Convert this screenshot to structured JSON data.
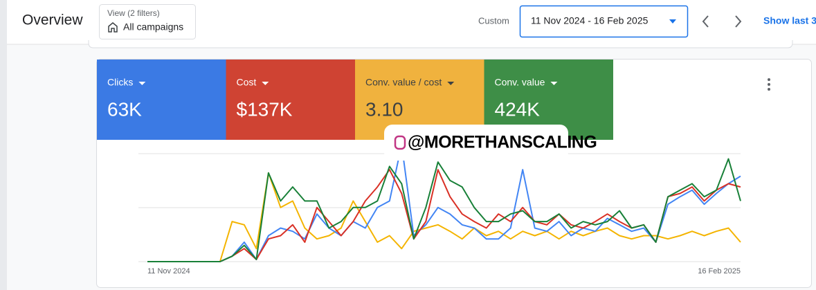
{
  "header": {
    "title": "Overview",
    "filter_caption": "View (2 filters)",
    "filter_value": "All campaigns",
    "range_type": "Custom",
    "date_range": "11 Nov 2024 - 16 Feb 2025",
    "show_last": "Show last 3"
  },
  "watermark": "@MORETHANSCALING",
  "chart": {
    "type": "line",
    "ylim": [
      0,
      110
    ],
    "categories": [
      "11 Nov 2024",
      null,
      null,
      null,
      null,
      null,
      null,
      null,
      null,
      null,
      null,
      null,
      null,
      null,
      null,
      null,
      null,
      null,
      null,
      null,
      null,
      null,
      null,
      null,
      null,
      null,
      null,
      null,
      null,
      null,
      null,
      null,
      null,
      null,
      null,
      null,
      null,
      null,
      null,
      null,
      null,
      null,
      null,
      null,
      null,
      null,
      null,
      null,
      null,
      "16 Feb 2025"
    ],
    "series": [
      {
        "name": "Clicks",
        "total": "63K",
        "color": "#4285f4",
        "values": [
          0,
          0,
          0,
          0,
          0,
          0,
          0,
          5,
          18,
          2,
          24,
          31,
          28,
          21,
          44,
          31,
          24,
          37,
          31,
          50,
          56,
          108,
          24,
          34,
          50,
          44,
          34,
          31,
          21,
          21,
          31,
          85,
          31,
          28,
          37,
          24,
          31,
          28,
          40,
          34,
          28,
          31,
          18,
          53,
          60,
          66,
          53,
          63,
          72,
          79
        ]
      },
      {
        "name": "Cost",
        "total": "$137K",
        "color": "#d93025",
        "values": [
          0,
          0,
          0,
          0,
          0,
          0,
          0,
          5,
          12,
          2,
          21,
          24,
          34,
          18,
          50,
          37,
          24,
          37,
          56,
          69,
          85,
          63,
          21,
          37,
          85,
          60,
          44,
          37,
          31,
          44,
          37,
          50,
          37,
          34,
          44,
          34,
          31,
          37,
          44,
          37,
          31,
          34,
          18,
          60,
          63,
          69,
          56,
          66,
          72,
          69
        ]
      },
      {
        "name": "Conv. value / cost",
        "total": "3.10",
        "color": "#f4b400",
        "values": [
          0,
          0,
          0,
          0,
          0,
          0,
          0,
          37,
          34,
          12,
          82,
          50,
          56,
          31,
          21,
          24,
          31,
          56,
          37,
          18,
          24,
          12,
          28,
          31,
          34,
          28,
          21,
          31,
          24,
          28,
          21,
          28,
          24,
          28,
          21,
          28,
          24,
          28,
          31,
          24,
          21,
          24,
          24,
          21,
          24,
          28,
          24,
          28,
          31,
          18
        ]
      },
      {
        "name": "Conv. value",
        "total": "424K",
        "color": "#188038",
        "values": [
          0,
          0,
          0,
          0,
          0,
          0,
          0,
          5,
          15,
          2,
          82,
          56,
          69,
          56,
          56,
          31,
          37,
          50,
          50,
          56,
          88,
          72,
          21,
          50,
          92,
          75,
          69,
          50,
          37,
          37,
          44,
          47,
          37,
          37,
          44,
          31,
          37,
          34,
          37,
          47,
          31,
          34,
          18,
          60,
          66,
          72,
          60,
          66,
          95,
          56
        ]
      }
    ]
  }
}
